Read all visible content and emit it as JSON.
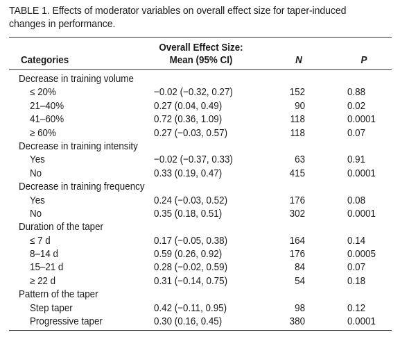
{
  "caption": {
    "line1": "TABLE 1. Effects of moderator variables on overall effect size for taper-induced",
    "line2": "changes in performance."
  },
  "header": {
    "categories": "Categories",
    "effect_size_line1": "Overall Effect Size:",
    "effect_size_line2": "Mean (95% CI)",
    "n": "N",
    "p": "P"
  },
  "rows": [
    {
      "type": "group",
      "category": "Decrease in training volume",
      "effect": "",
      "n": "",
      "p": ""
    },
    {
      "type": "sub",
      "category": "≤ 20%",
      "effect": "−0.02 (−0.32, 0.27)",
      "n": "152",
      "p": "0.88"
    },
    {
      "type": "sub",
      "category": "21–40%",
      "effect": "0.27 (0.04, 0.49)",
      "n": "90",
      "p": "0.02"
    },
    {
      "type": "sub",
      "category": "41–60%",
      "effect": "0.72 (0.36, 1.09)",
      "n": "118",
      "p": "0.0001"
    },
    {
      "type": "sub",
      "category": "≥ 60%",
      "effect": "0.27 (−0.03, 0.57)",
      "n": "118",
      "p": "0.07"
    },
    {
      "type": "group",
      "category": "Decrease in training intensity",
      "effect": "",
      "n": "",
      "p": ""
    },
    {
      "type": "sub",
      "category": "Yes",
      "effect": "−0.02 (−0.37, 0.33)",
      "n": "63",
      "p": "0.91"
    },
    {
      "type": "sub",
      "category": "No",
      "effect": "0.33 (0.19, 0.47)",
      "n": "415",
      "p": "0.0001"
    },
    {
      "type": "group",
      "category": "Decrease in training frequency",
      "effect": "",
      "n": "",
      "p": ""
    },
    {
      "type": "sub",
      "category": "Yes",
      "effect": "0.24 (−0.03, 0.52)",
      "n": "176",
      "p": "0.08"
    },
    {
      "type": "sub",
      "category": "No",
      "effect": "0.35 (0.18, 0.51)",
      "n": "302",
      "p": "0.0001"
    },
    {
      "type": "group",
      "category": "Duration of the taper",
      "effect": "",
      "n": "",
      "p": ""
    },
    {
      "type": "sub",
      "category": "≤ 7 d",
      "effect": "0.17 (−0.05, 0.38)",
      "n": "164",
      "p": "0.14"
    },
    {
      "type": "sub",
      "category": "8–14 d",
      "effect": "0.59 (0.26, 0.92)",
      "n": "176",
      "p": "0.0005"
    },
    {
      "type": "sub",
      "category": "15–21 d",
      "effect": "0.28 (−0.02, 0.59)",
      "n": "84",
      "p": "0.07"
    },
    {
      "type": "sub",
      "category": "≥ 22 d",
      "effect": "0.31 (−0.14, 0.75)",
      "n": "54",
      "p": "0.18"
    },
    {
      "type": "group",
      "category": "Pattern of the taper",
      "effect": "",
      "n": "",
      "p": ""
    },
    {
      "type": "sub",
      "category": "Step taper",
      "effect": "0.42 (−0.11, 0.95)",
      "n": "98",
      "p": "0.12"
    },
    {
      "type": "sub",
      "category": "Progressive taper",
      "effect": "0.30 (0.16, 0.45)",
      "n": "380",
      "p": "0.0001"
    }
  ]
}
